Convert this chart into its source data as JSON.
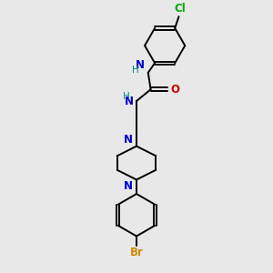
{
  "bg_color": "#e8e8e8",
  "bond_color": "#000000",
  "N_color": "#0000cc",
  "O_color": "#cc0000",
  "Cl_color": "#00aa00",
  "Br_color": "#cc8800",
  "H_color": "#008888",
  "font_size": 8.5,
  "small_font": 7.5,
  "lw": 1.4,
  "xlim": [
    0,
    10
  ],
  "ylim": [
    0,
    10
  ]
}
